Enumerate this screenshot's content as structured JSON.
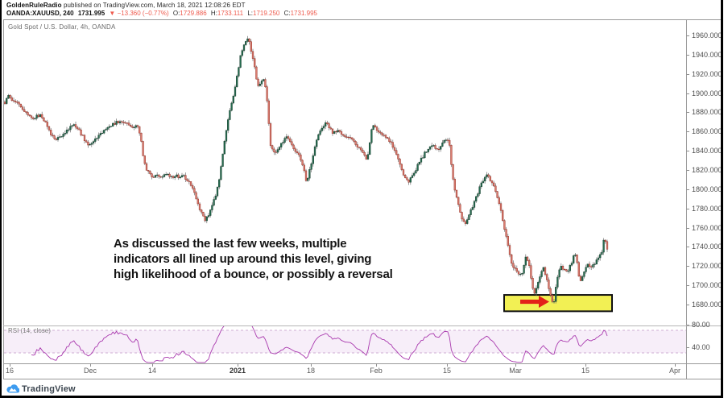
{
  "header": {
    "author": "GoldenRuleRadio",
    "published": " published on TradingView.com, March 18, 2021 12:08:26 EDT",
    "symbol": {
      "name": "OANDA:XAUUSD, 240",
      "last": "1731.995",
      "change": "▼ −13.360 (−0.77%)",
      "o_label": "O:",
      "o": "1729.886",
      "h_label": "H:",
      "h": "1733.111",
      "l_label": "L:",
      "l": "1719.250",
      "c_label": "C:",
      "c": "1731.995"
    }
  },
  "chart": {
    "pane_label": "Gold Spot / U.S. Dollar, 4h, OANDA",
    "annotation": [
      "As discussed the last few weeks, multiple",
      "indicators all lined up around this level, giving",
      "high likelihood of a bounce, or possibly a reversal"
    ],
    "y_ticks": [
      "1960.000",
      "1940.000",
      "1920.000",
      "1900.000",
      "1880.000",
      "1860.000",
      "1840.000",
      "1820.000",
      "1800.000",
      "1780.000",
      "1760.000",
      "1740.000",
      "1720.000",
      "1700.000",
      "1680.000"
    ],
    "x_ticks": [
      {
        "label": "16",
        "x": 12,
        "bold": false
      },
      {
        "label": "Dec",
        "x": 112,
        "bold": false
      },
      {
        "label": "14",
        "x": 189,
        "bold": false
      },
      {
        "label": "2021",
        "x": 295,
        "bold": true
      },
      {
        "label": "18",
        "x": 386,
        "bold": false
      },
      {
        "label": "Feb",
        "x": 467,
        "bold": false
      },
      {
        "label": "15",
        "x": 555,
        "bold": false
      },
      {
        "label": "Mar",
        "x": 640,
        "bold": false
      },
      {
        "label": "15",
        "x": 727,
        "bold": false
      },
      {
        "label": "Apr",
        "x": 838,
        "bold": false
      }
    ],
    "rsi": {
      "label": "RSI (14, close)",
      "ticks": [
        "80.00",
        "40.00"
      ]
    }
  },
  "footer": {
    "brand": "TradingView"
  },
  "colors": {
    "up_fill": "#256b4f",
    "up_stroke": "#143d2c",
    "down_fill": "#d97c70",
    "down_stroke": "#93281d",
    "wick": "#6f6f6f",
    "header_red": "#ef5b4e",
    "highlight_fill": "#f2f054",
    "highlight_stroke": "#111111",
    "arrow": "#e32119",
    "rsi_line": "#a939ae",
    "rsi_band": "#9c27b0",
    "rsi_dash": "#cfaed3",
    "tv_blue": "#3d9bef"
  },
  "chart_data": {
    "type": "candlestick",
    "symbol": "XAUUSD",
    "timeframe": "4h",
    "price_axis": {
      "min": 1680,
      "max": 1960,
      "step": 20
    },
    "x_range_dates": [
      "Nov 16 2020",
      "Apr 2021"
    ],
    "price_path": [
      [
        2,
        1884
      ],
      [
        6,
        1890
      ],
      [
        10,
        1898
      ],
      [
        14,
        1894
      ],
      [
        18,
        1889
      ],
      [
        22,
        1891
      ],
      [
        26,
        1886
      ],
      [
        30,
        1881
      ],
      [
        34,
        1877
      ],
      [
        38,
        1874
      ],
      [
        42,
        1872
      ],
      [
        46,
        1876
      ],
      [
        50,
        1878
      ],
      [
        54,
        1873
      ],
      [
        58,
        1866
      ],
      [
        62,
        1859
      ],
      [
        66,
        1855
      ],
      [
        70,
        1852
      ],
      [
        74,
        1854
      ],
      [
        78,
        1857
      ],
      [
        82,
        1861
      ],
      [
        86,
        1864
      ],
      [
        90,
        1868
      ],
      [
        94,
        1866
      ],
      [
        98,
        1861
      ],
      [
        102,
        1856
      ],
      [
        106,
        1850
      ],
      [
        110,
        1846
      ],
      [
        114,
        1849
      ],
      [
        118,
        1852
      ],
      [
        122,
        1855
      ],
      [
        126,
        1858
      ],
      [
        130,
        1861
      ],
      [
        134,
        1863
      ],
      [
        138,
        1866
      ],
      [
        142,
        1868
      ],
      [
        146,
        1870
      ],
      [
        150,
        1872
      ],
      [
        154,
        1870
      ],
      [
        158,
        1868
      ],
      [
        162,
        1866
      ],
      [
        166,
        1864
      ],
      [
        170,
        1868
      ],
      [
        174,
        1858
      ],
      [
        178,
        1832
      ],
      [
        182,
        1821
      ],
      [
        186,
        1816
      ],
      [
        190,
        1813
      ],
      [
        194,
        1816
      ],
      [
        198,
        1812
      ],
      [
        202,
        1814
      ],
      [
        206,
        1817
      ],
      [
        210,
        1815
      ],
      [
        214,
        1812
      ],
      [
        218,
        1814
      ],
      [
        222,
        1813
      ],
      [
        226,
        1815
      ],
      [
        230,
        1812
      ],
      [
        234,
        1808
      ],
      [
        238,
        1802
      ],
      [
        242,
        1794
      ],
      [
        246,
        1785
      ],
      [
        250,
        1775
      ],
      [
        254,
        1768
      ],
      [
        258,
        1772
      ],
      [
        262,
        1779
      ],
      [
        266,
        1789
      ],
      [
        270,
        1801
      ],
      [
        274,
        1820
      ],
      [
        278,
        1846
      ],
      [
        282,
        1866
      ],
      [
        286,
        1885
      ],
      [
        290,
        1899
      ],
      [
        294,
        1916
      ],
      [
        298,
        1936
      ],
      [
        302,
        1947
      ],
      [
        306,
        1954
      ],
      [
        309,
        1957
      ],
      [
        312,
        1944
      ],
      [
        315,
        1933
      ],
      [
        318,
        1916
      ],
      [
        321,
        1908
      ],
      [
        324,
        1911
      ],
      [
        327,
        1914
      ],
      [
        330,
        1905
      ],
      [
        333,
        1878
      ],
      [
        336,
        1846
      ],
      [
        339,
        1840
      ],
      [
        342,
        1836
      ],
      [
        345,
        1841
      ],
      [
        348,
        1846
      ],
      [
        351,
        1849
      ],
      [
        354,
        1852
      ],
      [
        357,
        1854
      ],
      [
        360,
        1850
      ],
      [
        363,
        1845
      ],
      [
        366,
        1841
      ],
      [
        369,
        1838
      ],
      [
        372,
        1834
      ],
      [
        375,
        1829
      ],
      [
        378,
        1817
      ],
      [
        381,
        1806
      ],
      [
        384,
        1819
      ],
      [
        387,
        1829
      ],
      [
        390,
        1841
      ],
      [
        393,
        1851
      ],
      [
        396,
        1859
      ],
      [
        399,
        1864
      ],
      [
        402,
        1867
      ],
      [
        405,
        1870
      ],
      [
        408,
        1865
      ],
      [
        411,
        1861
      ],
      [
        414,
        1858
      ],
      [
        417,
        1860
      ],
      [
        420,
        1861
      ],
      [
        423,
        1859
      ],
      [
        426,
        1856
      ],
      [
        429,
        1855
      ],
      [
        432,
        1856
      ],
      [
        435,
        1854
      ],
      [
        438,
        1851
      ],
      [
        441,
        1848
      ],
      [
        444,
        1845
      ],
      [
        447,
        1842
      ],
      [
        450,
        1839
      ],
      [
        453,
        1835
      ],
      [
        456,
        1831
      ],
      [
        459,
        1846
      ],
      [
        462,
        1868
      ],
      [
        465,
        1864
      ],
      [
        468,
        1862
      ],
      [
        471,
        1860
      ],
      [
        474,
        1858
      ],
      [
        477,
        1856
      ],
      [
        480,
        1854
      ],
      [
        483,
        1851
      ],
      [
        486,
        1847
      ],
      [
        489,
        1843
      ],
      [
        492,
        1838
      ],
      [
        495,
        1830
      ],
      [
        498,
        1822
      ],
      [
        501,
        1815
      ],
      [
        504,
        1810
      ],
      [
        507,
        1808
      ],
      [
        510,
        1811
      ],
      [
        513,
        1815
      ],
      [
        516,
        1820
      ],
      [
        519,
        1825
      ],
      [
        522,
        1830
      ],
      [
        525,
        1834
      ],
      [
        528,
        1838
      ],
      [
        531,
        1841
      ],
      [
        534,
        1843
      ],
      [
        537,
        1845
      ],
      [
        540,
        1844
      ],
      [
        543,
        1841
      ],
      [
        546,
        1844
      ],
      [
        549,
        1848
      ],
      [
        552,
        1851
      ],
      [
        555,
        1854
      ],
      [
        558,
        1846
      ],
      [
        561,
        1821
      ],
      [
        564,
        1801
      ],
      [
        567,
        1791
      ],
      [
        570,
        1782
      ],
      [
        573,
        1771
      ],
      [
        576,
        1766
      ],
      [
        579,
        1764
      ],
      [
        582,
        1772
      ],
      [
        585,
        1779
      ],
      [
        588,
        1785
      ],
      [
        591,
        1791
      ],
      [
        594,
        1798
      ],
      [
        597,
        1804
      ],
      [
        600,
        1809
      ],
      [
        603,
        1813
      ],
      [
        606,
        1814
      ],
      [
        609,
        1810
      ],
      [
        612,
        1805
      ],
      [
        615,
        1798
      ],
      [
        618,
        1790
      ],
      [
        621,
        1781
      ],
      [
        624,
        1768
      ],
      [
        627,
        1756
      ],
      [
        630,
        1745
      ],
      [
        633,
        1731
      ],
      [
        636,
        1721
      ],
      [
        639,
        1717
      ],
      [
        642,
        1714
      ],
      [
        645,
        1712
      ],
      [
        648,
        1710
      ],
      [
        651,
        1724
      ],
      [
        654,
        1731
      ],
      [
        657,
        1720
      ],
      [
        660,
        1704
      ],
      [
        663,
        1689
      ],
      [
        666,
        1697
      ],
      [
        669,
        1706
      ],
      [
        672,
        1715
      ],
      [
        675,
        1718
      ],
      [
        678,
        1709
      ],
      [
        681,
        1699
      ],
      [
        684,
        1689
      ],
      [
        687,
        1679
      ],
      [
        690,
        1696
      ],
      [
        693,
        1711
      ],
      [
        696,
        1720
      ],
      [
        699,
        1718
      ],
      [
        702,
        1716
      ],
      [
        705,
        1714
      ],
      [
        708,
        1720
      ],
      [
        711,
        1727
      ],
      [
        714,
        1734
      ],
      [
        717,
        1721
      ],
      [
        720,
        1703
      ],
      [
        723,
        1710
      ],
      [
        726,
        1717
      ],
      [
        729,
        1722
      ],
      [
        732,
        1720
      ],
      [
        735,
        1719
      ],
      [
        738,
        1723
      ],
      [
        741,
        1726
      ],
      [
        744,
        1729
      ],
      [
        747,
        1733
      ],
      [
        750,
        1749
      ],
      [
        753,
        1741
      ],
      [
        756,
        1732
      ]
    ],
    "highlight_box": {
      "x1": 626,
      "x2": 760,
      "price_top": 1690,
      "price_bottom": 1673
    },
    "arrow": {
      "x1": 646,
      "x2": 682,
      "y": 374.5
    },
    "indicator": {
      "type": "RSI",
      "period": 14,
      "source": "close",
      "bands": [
        70,
        30
      ],
      "tick_values": [
        80,
        40
      ]
    }
  }
}
